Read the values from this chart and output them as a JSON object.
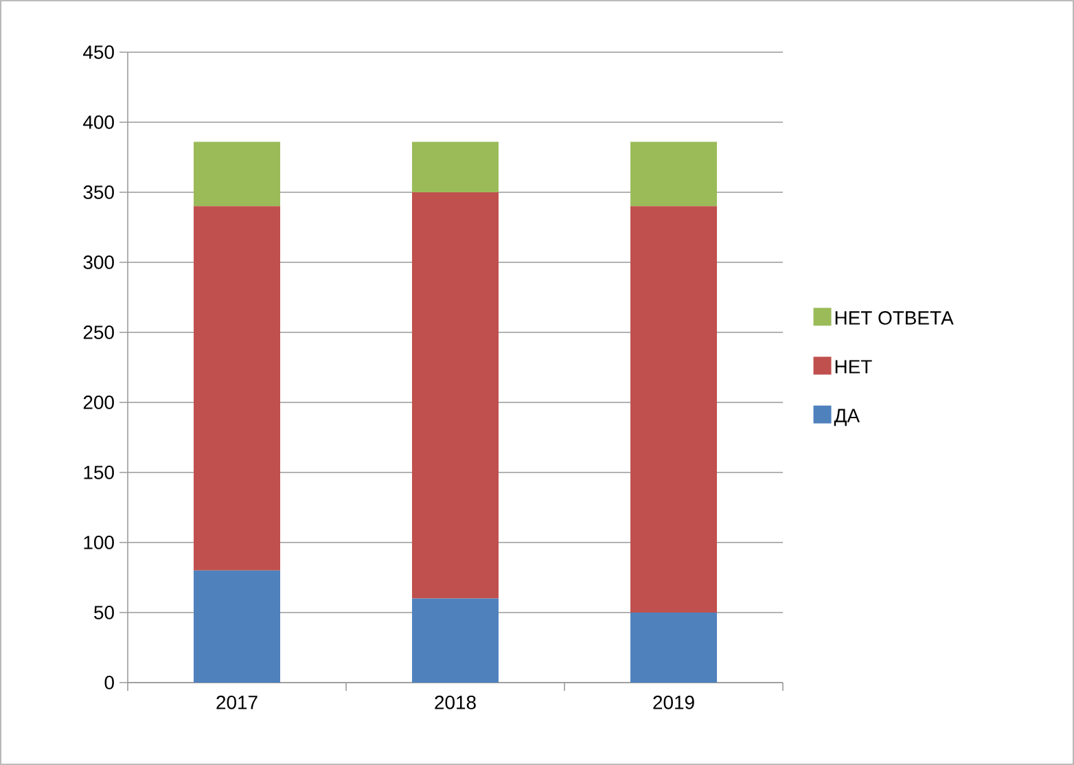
{
  "chart_data": {
    "type": "bar",
    "stacked": true,
    "categories": [
      "2017",
      "2018",
      "2019"
    ],
    "series": [
      {
        "name": "ДА",
        "color": "#4f81bd",
        "values": [
          80,
          60,
          50
        ]
      },
      {
        "name": "НЕТ",
        "color": "#c0504d",
        "values": [
          260,
          290,
          290
        ]
      },
      {
        "name": "НЕТ ОТВЕТА",
        "color": "#9bbb59",
        "values": [
          46,
          36,
          46
        ]
      }
    ],
    "ylim": [
      0,
      450
    ],
    "yticks": [
      0,
      50,
      100,
      150,
      200,
      250,
      300,
      350,
      400,
      450
    ],
    "grid": "y",
    "legend": "right"
  }
}
